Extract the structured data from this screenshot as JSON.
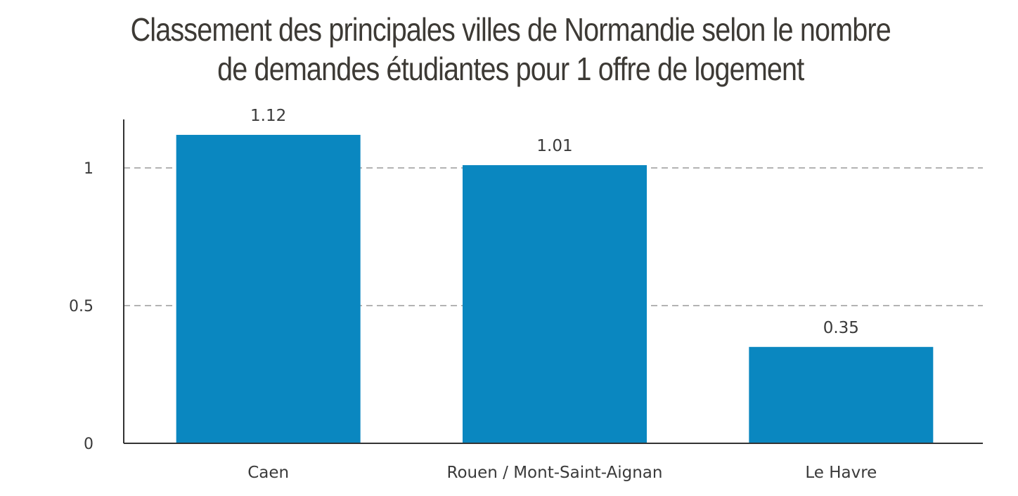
{
  "chart_data": {
    "type": "bar",
    "title_lines": [
      "Classement des principales villes de Normandie selon le nombre",
      "de demandes étudiantes pour 1 offre de logement"
    ],
    "categories": [
      "Caen",
      "Rouen / Mont-Saint-Aignan",
      "Le Havre"
    ],
    "values": [
      1.12,
      1.01,
      0.35
    ],
    "data_labels": [
      "1.12",
      "1.01",
      "0.35"
    ],
    "y_ticks": [
      0,
      0.5,
      1
    ],
    "y_tick_labels": [
      "0",
      "0.5",
      "1"
    ],
    "ylim": [
      0,
      1.12
    ],
    "grid": "dashed horizontal",
    "bar_color": "#0a87c0",
    "axis_color": "#333333",
    "grid_color": "#9a9a9a"
  }
}
